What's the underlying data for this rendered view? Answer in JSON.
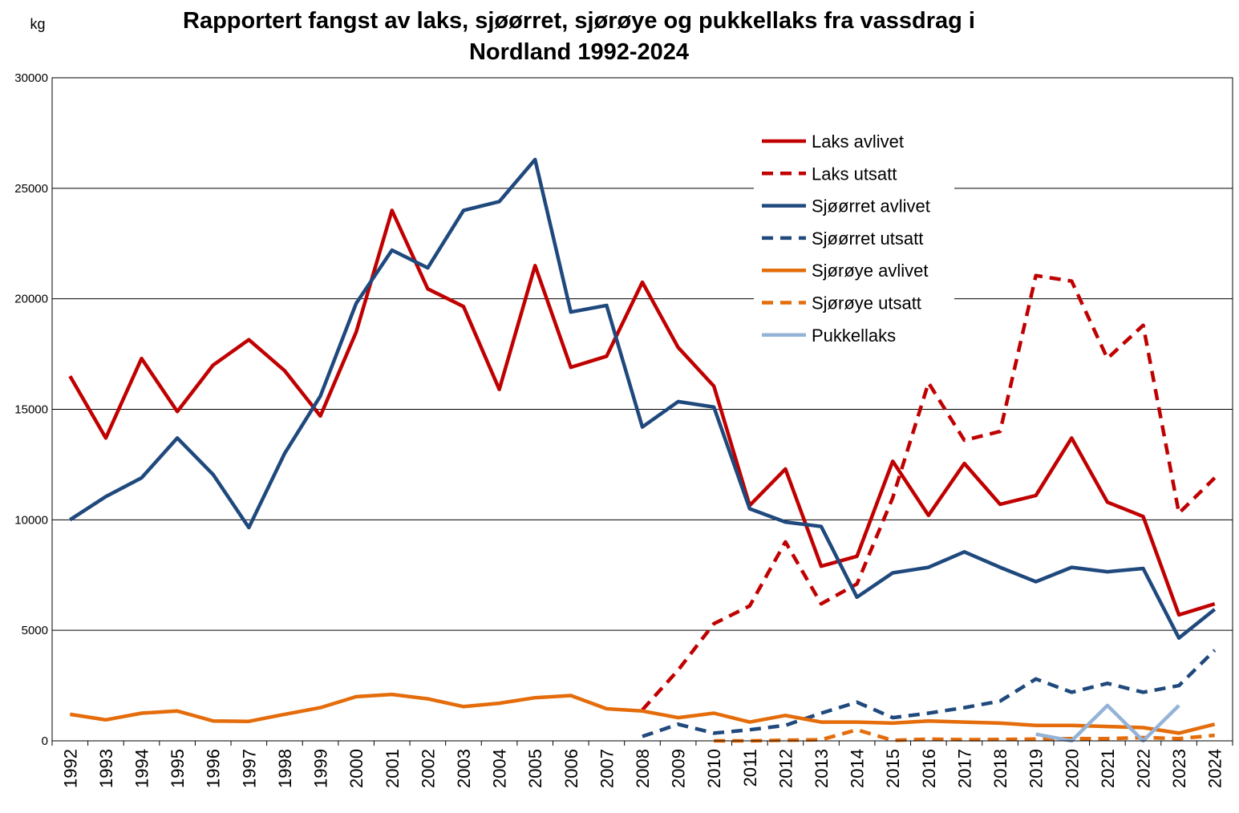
{
  "chart_data": {
    "type": "line",
    "title_lines": [
      "Rapportert fangst av laks, sjøørret, sjørøye og pukkellaks fra vassdrag i",
      "Nordland 1992-2024"
    ],
    "unit_label": "kg",
    "ylim": [
      0,
      30000
    ],
    "y_ticks": [
      "0",
      "5000",
      "10000",
      "15000",
      "20000",
      "25000",
      "30000"
    ],
    "grid": true,
    "legend_position": "top-right",
    "categories": [
      "1992",
      "1993",
      "1994",
      "1995",
      "1996",
      "1997",
      "1998",
      "1999",
      "2000",
      "2001",
      "2002",
      "2003",
      "2004",
      "2005",
      "2006",
      "2007",
      "2008",
      "2009",
      "2010",
      "2011",
      "2012",
      "2013",
      "2014",
      "2015",
      "2016",
      "2017",
      "2018",
      "2019",
      "2020",
      "2021",
      "2022",
      "2023",
      "2024"
    ],
    "series": [
      {
        "name": "Laks avlivet",
        "color": "#C00000",
        "dash": "solid",
        "values": [
          16500,
          13700,
          17300,
          14900,
          17000,
          18150,
          16750,
          14700,
          18500,
          24000,
          20450,
          19650,
          15900,
          21500,
          16900,
          17400,
          20750,
          17800,
          16050,
          10650,
          12300,
          7900,
          8350,
          12650,
          10200,
          12550,
          10700,
          11100,
          13700,
          10800,
          10150,
          5700,
          6200
        ]
      },
      {
        "name": "Laks utsatt",
        "color": "#C00000",
        "dash": "dashed",
        "values": [
          null,
          null,
          null,
          null,
          null,
          null,
          null,
          null,
          null,
          null,
          null,
          null,
          null,
          null,
          null,
          null,
          1400,
          3200,
          5300,
          6100,
          9000,
          6200,
          7100,
          11000,
          16200,
          13600,
          14000,
          21050,
          20800,
          17300,
          18800,
          10300,
          11900
        ]
      },
      {
        "name": "Sjøørret avlivet",
        "color": "#1F497D",
        "dash": "solid",
        "values": [
          10000,
          11050,
          11900,
          13700,
          12050,
          9650,
          13000,
          15600,
          19800,
          22200,
          21400,
          24000,
          24400,
          26300,
          19400,
          19700,
          14200,
          15350,
          15100,
          10500,
          9900,
          9700,
          6500,
          7600,
          7850,
          8550,
          7850,
          7200,
          7850,
          7650,
          7800,
          4650,
          5950
        ]
      },
      {
        "name": "Sjøørret utsatt",
        "color": "#1F497D",
        "dash": "dashed",
        "values": [
          null,
          null,
          null,
          null,
          null,
          null,
          null,
          null,
          null,
          null,
          null,
          null,
          null,
          null,
          null,
          null,
          200,
          750,
          350,
          500,
          700,
          1250,
          1750,
          1050,
          1250,
          1500,
          1800,
          2800,
          2200,
          2600,
          2200,
          2500,
          4100
        ]
      },
      {
        "name": "Sjørøye avlivet",
        "color": "#E46C0A",
        "dash": "solid",
        "values": [
          1200,
          950,
          1250,
          1350,
          900,
          880,
          1200,
          1500,
          2000,
          2100,
          1900,
          1550,
          1700,
          1950,
          2050,
          1450,
          1350,
          1050,
          1250,
          850,
          1150,
          850,
          850,
          800,
          900,
          850,
          800,
          700,
          700,
          650,
          600,
          350,
          750
        ]
      },
      {
        "name": "Sjørøye utsatt",
        "color": "#E46C0A",
        "dash": "dashed",
        "values": [
          null,
          null,
          null,
          null,
          null,
          null,
          null,
          null,
          null,
          null,
          null,
          null,
          null,
          null,
          null,
          null,
          null,
          null,
          0,
          0,
          30,
          50,
          500,
          20,
          80,
          50,
          60,
          80,
          100,
          100,
          150,
          100,
          250
        ]
      },
      {
        "name": "Pukkellaks",
        "color": "#95B3D7",
        "dash": "solid",
        "values": [
          null,
          null,
          null,
          null,
          null,
          null,
          null,
          null,
          null,
          null,
          null,
          null,
          null,
          null,
          null,
          null,
          null,
          null,
          null,
          null,
          null,
          null,
          null,
          null,
          null,
          null,
          null,
          300,
          0,
          1600,
          0,
          1600,
          null
        ]
      }
    ]
  }
}
